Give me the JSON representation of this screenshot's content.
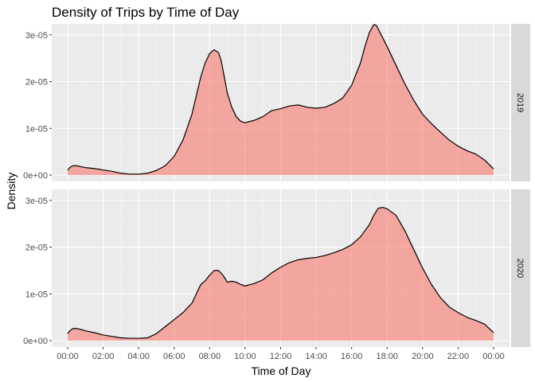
{
  "chart_data": {
    "type": "area",
    "title": "Density of Trips by Time of Day",
    "xlabel": "Time of Day",
    "ylabel": "Density",
    "x_unit": "hours",
    "xlim": [
      0,
      24
    ],
    "ylim": [
      0,
      3.2e-05
    ],
    "x_tick_labels": [
      "00:00",
      "02:00",
      "04:00",
      "06:00",
      "08:00",
      "10:00",
      "12:00",
      "14:00",
      "16:00",
      "18:00",
      "20:00",
      "22:00",
      "00:00"
    ],
    "y_tick_labels": [
      "0e+00",
      "1e-05",
      "2e-05",
      "3e-05"
    ],
    "y_tick_values": [
      0,
      1e-05,
      2e-05,
      3e-05
    ],
    "fill_color": "#F8766D",
    "fill_alpha": 0.6,
    "line_color": "#000000",
    "panel_background": "#EBEBEB",
    "strip_background": "#D9D9D9",
    "grid": true,
    "facets": [
      {
        "label": "2019",
        "x": [
          0,
          0.15,
          0.3,
          0.5,
          0.75,
          1,
          1.5,
          2,
          2.5,
          3,
          3.5,
          4,
          4.5,
          5,
          5.5,
          6,
          6.5,
          7,
          7.25,
          7.5,
          7.75,
          8,
          8.25,
          8.5,
          8.65,
          8.8,
          9,
          9.25,
          9.5,
          9.75,
          10,
          10.5,
          11,
          11.5,
          12,
          12.5,
          13,
          13.5,
          14,
          14.5,
          15,
          15.5,
          16,
          16.5,
          16.75,
          17,
          17.25,
          17.4,
          17.6,
          18,
          18.5,
          19,
          19.5,
          20,
          20.5,
          21,
          21.5,
          22,
          22.5,
          23,
          23.5,
          24
        ],
        "y": [
          1.1e-06,
          1.7e-06,
          2e-06,
          2e-06,
          1.8e-06,
          1.6e-06,
          1.4e-06,
          1.1e-06,
          8e-07,
          4e-07,
          2e-07,
          2e-07,
          4e-07,
          1e-06,
          2e-06,
          4e-06,
          7.5e-06,
          1.3e-05,
          1.7e-05,
          2.1e-05,
          2.4e-05,
          2.6e-05,
          2.68e-05,
          2.62e-05,
          2.45e-05,
          2.15e-05,
          1.75e-05,
          1.45e-05,
          1.25e-05,
          1.15e-05,
          1.12e-05,
          1.17e-05,
          1.25e-05,
          1.38e-05,
          1.42e-05,
          1.48e-05,
          1.5e-05,
          1.45e-05,
          1.43e-05,
          1.45e-05,
          1.53e-05,
          1.65e-05,
          1.92e-05,
          2.4e-05,
          2.75e-05,
          3.05e-05,
          3.22e-05,
          3.2e-05,
          3.05e-05,
          2.75e-05,
          2.35e-05,
          1.95e-05,
          1.6e-05,
          1.3e-05,
          1.1e-05,
          9.2e-06,
          7.5e-06,
          6.2e-06,
          5.2e-06,
          4.5e-06,
          3.2e-06,
          1.3e-06
        ]
      },
      {
        "label": "2020",
        "x": [
          0,
          0.15,
          0.3,
          0.5,
          0.75,
          1,
          1.5,
          2,
          2.5,
          3,
          3.5,
          4,
          4.5,
          5,
          5.5,
          6,
          6.5,
          7,
          7.25,
          7.5,
          7.75,
          8,
          8.25,
          8.5,
          8.75,
          9,
          9.25,
          9.5,
          9.75,
          10,
          10.5,
          11,
          11.5,
          12,
          12.5,
          13,
          13.5,
          14,
          14.5,
          15,
          15.5,
          16,
          16.5,
          17,
          17.25,
          17.5,
          17.75,
          18,
          18.5,
          19,
          19.5,
          20,
          20.5,
          21,
          21.5,
          22,
          22.5,
          23,
          23.5,
          24
        ],
        "y": [
          1.5e-06,
          2.2e-06,
          2.6e-06,
          2.6e-06,
          2.4e-06,
          2.1e-06,
          1.7e-06,
          1.2e-06,
          9e-07,
          6e-07,
          5e-07,
          5e-07,
          6e-07,
          1.5e-06,
          3e-06,
          4.5e-06,
          6e-06,
          8e-06,
          1e-05,
          1.2e-05,
          1.28e-05,
          1.4e-05,
          1.5e-05,
          1.5e-05,
          1.4e-05,
          1.25e-05,
          1.27e-05,
          1.25e-05,
          1.2e-05,
          1.17e-05,
          1.22e-05,
          1.3e-05,
          1.45e-05,
          1.57e-05,
          1.67e-05,
          1.73e-05,
          1.76e-05,
          1.78e-05,
          1.82e-05,
          1.88e-05,
          1.95e-05,
          2.05e-05,
          2.22e-05,
          2.48e-05,
          2.68e-05,
          2.83e-05,
          2.85e-05,
          2.82e-05,
          2.68e-05,
          2.35e-05,
          1.95e-05,
          1.55e-05,
          1.2e-05,
          9.2e-06,
          7.2e-06,
          6e-06,
          5e-06,
          4.3e-06,
          3.5e-06,
          1.7e-06
        ]
      }
    ]
  }
}
